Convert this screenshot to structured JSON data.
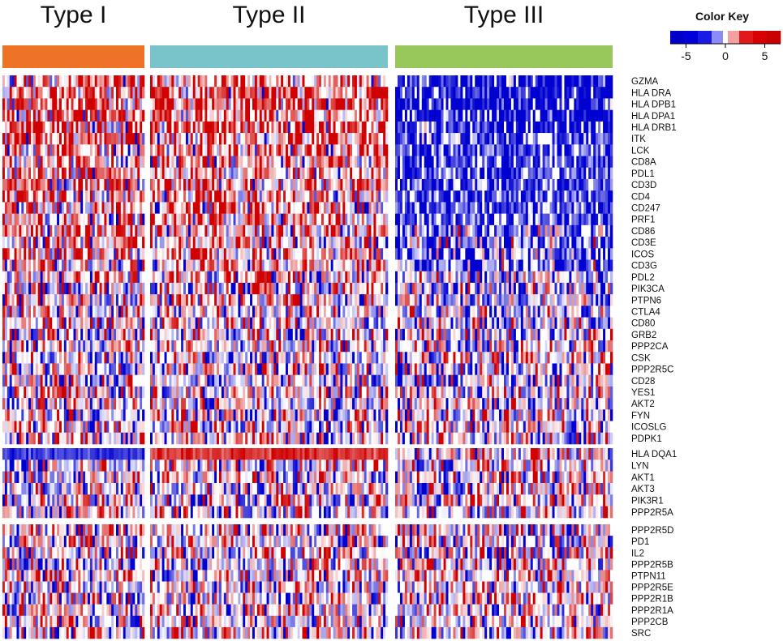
{
  "chart_data": {
    "type": "heatmap",
    "groups": [
      {
        "name": "Type I",
        "color": "#ee7326",
        "samples": 60
      },
      {
        "name": "Type II",
        "color": "#79c3cb",
        "samples": 100
      },
      {
        "name": "Type III",
        "color": "#98c75c",
        "samples": 90
      }
    ],
    "row_blocks": [
      {
        "genes": [
          "GZMA",
          "HLA DRA",
          "HLA DPB1",
          "HLA DPA1",
          "HLA DRB1",
          "ITK",
          "LCK",
          "CD8A",
          "PDL1",
          "CD3D",
          "CD4",
          "CD247",
          "PRF1",
          "CD86",
          "CD3E",
          "ICOS",
          "CD3G",
          "PDL2",
          "PIK3CA",
          "PTPN6",
          "CTLA4",
          "CD80",
          "GRB2",
          "PPP2CA",
          "CSK",
          "PPP2R5C",
          "CD28",
          "YES1",
          "AKT2",
          "FYN",
          "ICOSLG",
          "PDPK1"
        ]
      },
      {
        "genes": [
          "HLA DQA1",
          "LYN",
          "AKT1",
          "AKT3",
          "PIK3R1",
          "PPP2R5A"
        ]
      },
      {
        "genes": [
          "PPP2R5D",
          "PD1",
          "IL2",
          "PPP2R5B",
          "PTPN11",
          "PPP2R5E",
          "PPP2R1B",
          "PPP2R1A",
          "PPP2CB",
          "SRC"
        ]
      }
    ],
    "group_row_means": {
      "Type I": [
        2.5,
        3,
        3,
        3,
        3,
        1.8,
        1.8,
        1.8,
        1.8,
        1.8,
        1.6,
        1.6,
        1.6,
        1.5,
        1.2,
        1.2,
        1.2,
        0.8,
        0.5,
        0.5,
        0.3,
        0.3,
        0,
        0,
        0,
        0,
        0,
        0,
        0,
        0,
        0,
        0,
        -3.5,
        0,
        0,
        0,
        0,
        0,
        0,
        0,
        0,
        0,
        0,
        0,
        0,
        0,
        0,
        0
      ],
      "Type II": [
        2.5,
        3,
        3,
        3,
        3,
        1.8,
        1.8,
        1.8,
        1.8,
        1.8,
        1.6,
        1.6,
        1.6,
        1.5,
        1.2,
        1.2,
        1.2,
        0.8,
        0.5,
        0.5,
        0.3,
        0.3,
        0,
        0,
        0,
        0,
        0,
        0,
        0,
        0,
        0,
        0,
        3.5,
        0,
        0,
        0,
        0,
        0,
        0,
        0,
        0,
        0,
        0,
        0,
        0,
        0,
        0,
        0
      ],
      "Type III": [
        -4.5,
        -4.5,
        -4.5,
        -4.5,
        -4.5,
        -3.5,
        -3.5,
        -3.5,
        -3.5,
        -3.5,
        -3.5,
        -3.5,
        -3.5,
        -3,
        -3,
        -3,
        -3,
        -2,
        -1.5,
        -1,
        -1,
        -1,
        -0.5,
        0,
        0,
        0,
        0,
        0,
        0,
        0,
        0,
        0,
        0,
        0,
        0,
        0,
        0,
        0,
        0,
        0,
        0,
        0,
        0,
        0,
        0,
        0,
        0,
        0
      ]
    },
    "color_scale": {
      "min": -7,
      "max": 7,
      "low": "#0000d0",
      "mid": "#ffffff",
      "high": "#d00000"
    },
    "color_key": {
      "title": "Color Key",
      "ticks": [
        -5,
        0,
        5
      ],
      "tick_labels": [
        "-5",
        "0",
        "5"
      ]
    }
  }
}
